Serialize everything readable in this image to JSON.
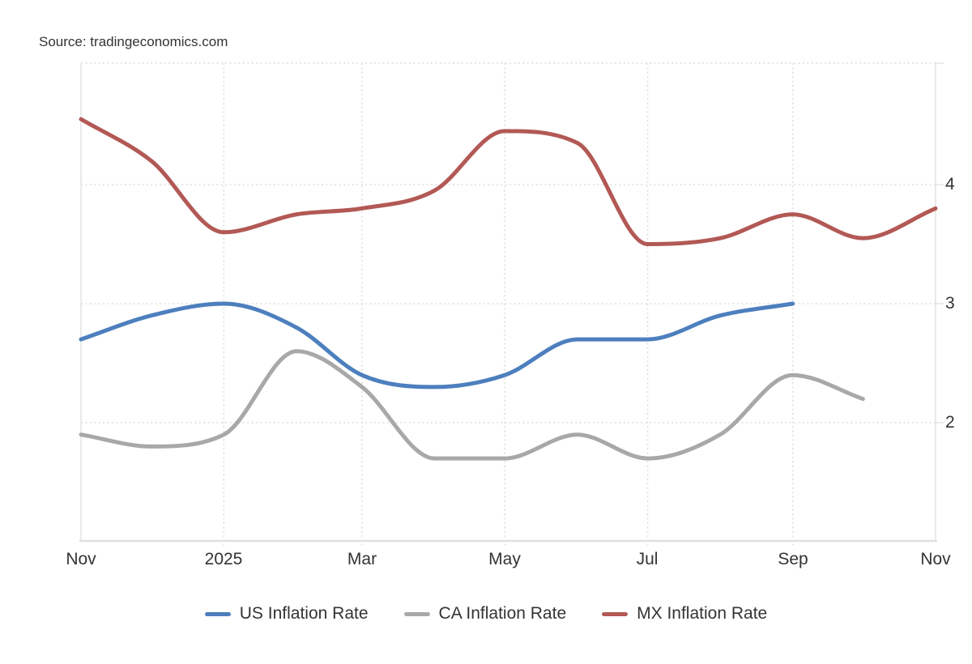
{
  "source_note": "Source: tradingeconomics.com",
  "chart_data": {
    "type": "line",
    "grid": "dotted",
    "legend_position": "bottom",
    "x_axis": {
      "tick_labels": [
        "Nov",
        "2025",
        "Mar",
        "May",
        "Jul",
        "Sep",
        "Nov"
      ],
      "categories": [
        "Nov 2024",
        "Dec 2024",
        "Jan 2025",
        "Feb 2025",
        "Mar 2025",
        "Apr 2025",
        "May 2025",
        "Jun 2025",
        "Jul 2025",
        "Aug 2025",
        "Sep 2025",
        "Oct 2025",
        "Nov 2025"
      ]
    },
    "y_axis": {
      "tick_labels": [
        "4",
        "3",
        "2"
      ],
      "grid_values": [
        4,
        3,
        2
      ],
      "range": [
        1.0,
        5.0
      ]
    },
    "series": [
      {
        "id": "us",
        "name": "US Inflation Rate",
        "color": "#4d7fbe",
        "start_month": 0,
        "values": [
          2.7,
          2.9,
          3.0,
          2.8,
          2.4,
          2.3,
          2.4,
          2.7,
          2.7,
          2.9,
          3.0
        ]
      },
      {
        "id": "ca",
        "name": "CA Inflation Rate",
        "color": "#a8a8a8",
        "start_month": 0,
        "values": [
          1.9,
          1.8,
          1.9,
          2.6,
          2.3,
          1.7,
          1.7,
          1.9,
          1.7,
          1.9,
          2.4,
          2.2
        ]
      },
      {
        "id": "mx",
        "name": "MX Inflation Rate",
        "color": "#b25955",
        "start_month": 0,
        "values": [
          4.55,
          4.2,
          3.6,
          3.75,
          3.8,
          3.95,
          4.45,
          4.35,
          3.5,
          3.55,
          3.75,
          3.55,
          3.8
        ]
      }
    ]
  }
}
